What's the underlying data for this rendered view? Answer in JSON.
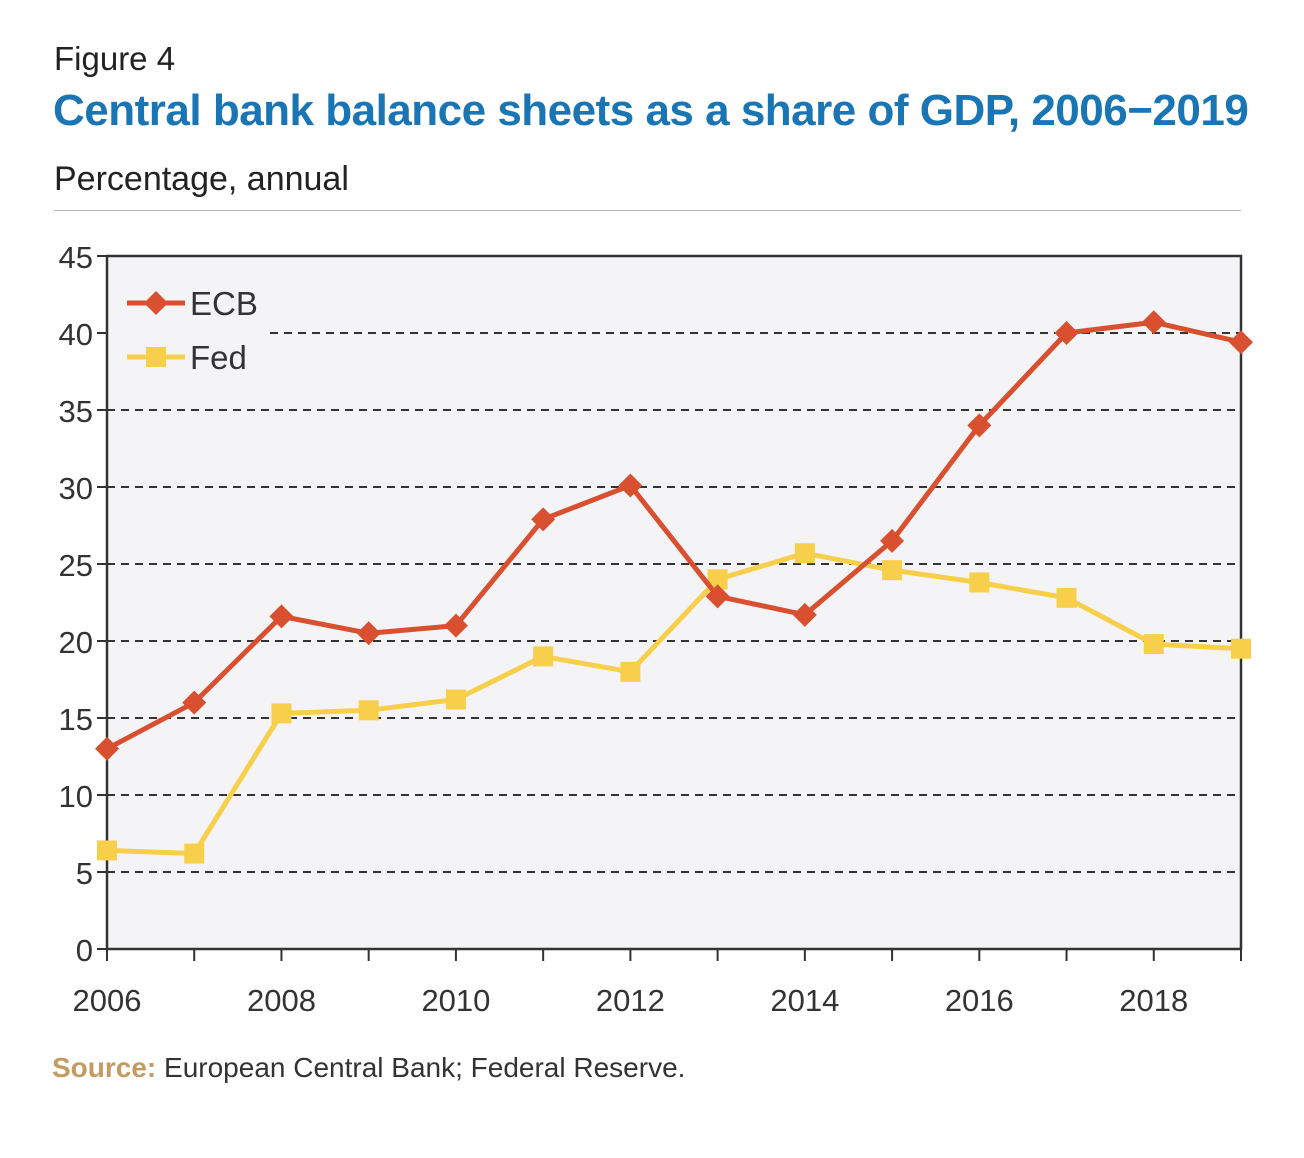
{
  "figure_label": "Figure 4",
  "title": "Central bank balance sheets as a share of GDP, 2006−2019",
  "subtitle": "Percentage, annual",
  "source_label": "Source:",
  "source_text": " European Central Bank; Federal Reserve.",
  "chart_data": {
    "type": "line",
    "x": [
      2006,
      2007,
      2008,
      2009,
      2010,
      2011,
      2012,
      2013,
      2014,
      2015,
      2016,
      2017,
      2018,
      2019
    ],
    "x_tick_labels": [
      "2006",
      "2008",
      "2010",
      "2012",
      "2014",
      "2016",
      "2018"
    ],
    "x_tick_values": [
      2006,
      2008,
      2010,
      2012,
      2014,
      2016,
      2018
    ],
    "xlim": [
      2006,
      2019
    ],
    "ylim": [
      0,
      45
    ],
    "y_ticks": [
      0,
      5,
      10,
      15,
      20,
      25,
      30,
      35,
      40,
      45
    ],
    "grid": "horizontal dashed",
    "legend_position": "top-left",
    "series": [
      {
        "name": "ECB",
        "color": "#d8502f",
        "marker": "diamond",
        "values": [
          13.0,
          16.0,
          21.6,
          20.5,
          21.0,
          27.9,
          30.1,
          22.9,
          21.7,
          26.5,
          34.0,
          40.0,
          40.7,
          39.4
        ]
      },
      {
        "name": "Fed",
        "color": "#f7cf4b",
        "marker": "square",
        "values": [
          6.4,
          6.2,
          15.3,
          15.5,
          16.2,
          19.0,
          18.0,
          24.0,
          25.7,
          24.6,
          23.8,
          22.8,
          19.8,
          19.5
        ]
      }
    ]
  }
}
